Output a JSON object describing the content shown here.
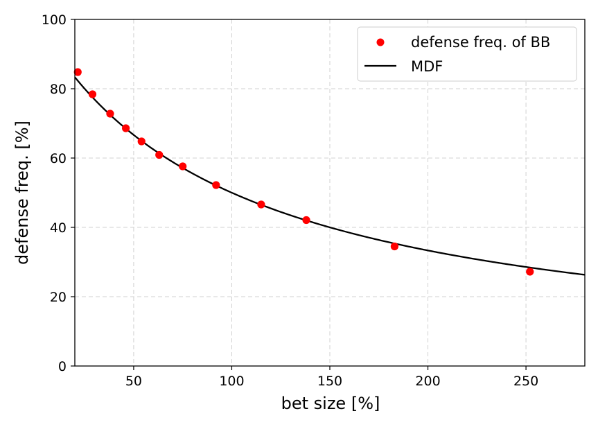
{
  "chart_data": {
    "type": "scatter",
    "xlabel": "bet size [%]",
    "ylabel": "defense freq. [%]",
    "xlim": [
      20,
      280
    ],
    "ylim": [
      0,
      100
    ],
    "xticks": [
      50,
      100,
      150,
      200,
      250
    ],
    "yticks": [
      0,
      20,
      40,
      60,
      80,
      100
    ],
    "grid": true,
    "legend_position": "top-right",
    "series": [
      {
        "name": "defense freq. of BB",
        "kind": "scatter",
        "color": "#ff0000",
        "x": [
          21.5,
          29,
          38,
          46,
          54,
          63,
          75,
          92,
          115,
          138,
          183,
          252
        ],
        "y": [
          84.8,
          78.4,
          72.8,
          68.6,
          64.8,
          60.9,
          57.6,
          52.2,
          46.6,
          42.1,
          34.5,
          27.2
        ]
      },
      {
        "name": "MDF",
        "kind": "line",
        "color": "#000000",
        "formula": "100 / (1 + x/100)"
      }
    ]
  }
}
